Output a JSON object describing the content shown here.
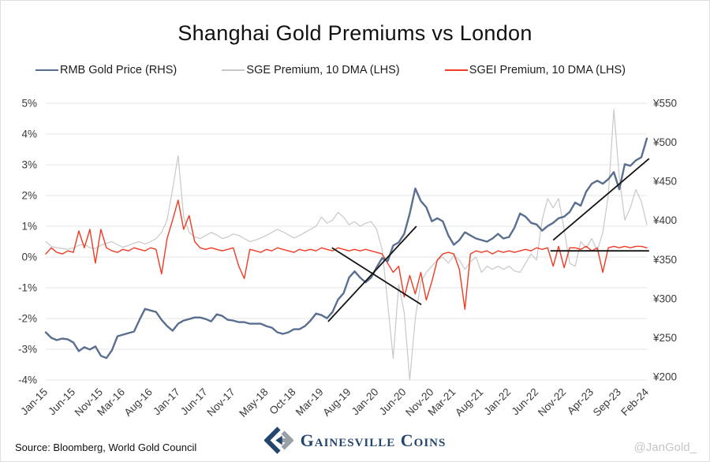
{
  "title": "Shanghai Gold Premiums vs London",
  "footer": {
    "source": "Source: Bloomberg, World Gold Council",
    "logo_text": "Gainesville Coins",
    "watermark": "@JanGold_"
  },
  "chart_data": {
    "type": "line",
    "title": "Shanghai Gold Premiums vs London",
    "x_start": "Jan-2015",
    "x_end": "Feb-2024",
    "x_frequency": "monthly",
    "x_index_count": 110,
    "grid": true,
    "grid_color": "#e4e4e4",
    "legend_position": "top",
    "left_axis": {
      "format": "percent",
      "max": 5,
      "min": -4,
      "ticks": [
        {
          "label": "5%",
          "value": 5
        },
        {
          "label": "4%",
          "value": 4
        },
        {
          "label": "3%",
          "value": 3
        },
        {
          "label": "2%",
          "value": 2
        },
        {
          "label": "1%",
          "value": 1
        },
        {
          "label": "0%",
          "value": 0
        },
        {
          "label": "-1%",
          "value": -1
        },
        {
          "label": "-2%",
          "value": -2
        },
        {
          "label": "-3%",
          "value": -3
        },
        {
          "label": "-4%",
          "value": -4
        }
      ]
    },
    "right_axis": {
      "format": "cny-per-gram",
      "max": 550,
      "min": 196,
      "ticks": [
        {
          "label": "¥550",
          "value": 550
        },
        {
          "label": "¥500",
          "value": 500
        },
        {
          "label": "¥450",
          "value": 450
        },
        {
          "label": "¥400",
          "value": 400
        },
        {
          "label": "¥350",
          "value": 350
        },
        {
          "label": "¥300",
          "value": 300
        },
        {
          "label": "¥250",
          "value": 250
        },
        {
          "label": "¥200",
          "value": 200
        }
      ]
    },
    "x_axis": {
      "ticks": [
        {
          "label": "Jan-15",
          "m": 0
        },
        {
          "label": "Jun-15",
          "m": 5
        },
        {
          "label": "Nov-15",
          "m": 10
        },
        {
          "label": "Mar-16",
          "m": 14
        },
        {
          "label": "Aug-16",
          "m": 19
        },
        {
          "label": "Jan-17",
          "m": 24
        },
        {
          "label": "Jun-17",
          "m": 29
        },
        {
          "label": "Nov-17",
          "m": 34
        },
        {
          "label": "May-18",
          "m": 40
        },
        {
          "label": "Oct-18",
          "m": 45
        },
        {
          "label": "Mar-19",
          "m": 50
        },
        {
          "label": "Aug-19",
          "m": 55
        },
        {
          "label": "Jan-20",
          "m": 60
        },
        {
          "label": "Jun-20",
          "m": 65
        },
        {
          "label": "Nov-20",
          "m": 70
        },
        {
          "label": "Mar-21",
          "m": 74
        },
        {
          "label": "Aug-21",
          "m": 79
        },
        {
          "label": "Jan-22",
          "m": 84
        },
        {
          "label": "Jun-22",
          "m": 89
        },
        {
          "label": "Nov-22",
          "m": 94
        },
        {
          "label": "Apr-23",
          "m": 99
        },
        {
          "label": "Sep-23",
          "m": 104
        },
        {
          "label": "Feb-24",
          "m": 109
        }
      ]
    },
    "series": [
      {
        "key": "rmb-gold-price",
        "name": "RMB Gold Price (RHS)",
        "axis": "right",
        "unit": "CNY/gram",
        "color": "#5a6e8f",
        "width": 2.4,
        "values": [
          257,
          250,
          247,
          249,
          248,
          244,
          233,
          238,
          235,
          239,
          227,
          224,
          234,
          252,
          254,
          256,
          258,
          273,
          287,
          285,
          283,
          273,
          265,
          259,
          268,
          272,
          274,
          276,
          276,
          274,
          271,
          280,
          278,
          273,
          272,
          270,
          270,
          268,
          268,
          268,
          265,
          263,
          257,
          255,
          257,
          261,
          261,
          265,
          272,
          281,
          279,
          275,
          283,
          299,
          307,
          327,
          335,
          327,
          321,
          327,
          340,
          352,
          348,
          368,
          372,
          383,
          409,
          441,
          425,
          417,
          399,
          403,
          399,
          381,
          369,
          375,
          385,
          381,
          377,
          375,
          373,
          377,
          383,
          377,
          379,
          391,
          409,
          405,
          397,
          395,
          387,
          393,
          397,
          403,
          405,
          411,
          423,
          419,
          437,
          447,
          451,
          447,
          453,
          462,
          440,
          472,
          470,
          477,
          481,
          505
        ]
      },
      {
        "key": "sge-premium",
        "name": "SGE Premium, 10 DMA (LHS)",
        "axis": "left",
        "unit": "%",
        "color": "#c8c8c8",
        "width": 1.2,
        "values": [
          0.5,
          0.35,
          0.3,
          0.28,
          0.25,
          0.3,
          0.38,
          0.42,
          0.3,
          0.28,
          0.38,
          0.45,
          0.5,
          0.4,
          0.32,
          0.38,
          0.45,
          0.5,
          0.42,
          0.5,
          0.6,
          0.8,
          1.2,
          2.2,
          3.3,
          1.3,
          0.8,
          0.65,
          0.6,
          0.7,
          0.8,
          0.72,
          0.6,
          0.65,
          0.75,
          0.7,
          0.6,
          0.5,
          0.55,
          0.62,
          0.7,
          0.8,
          0.9,
          0.82,
          0.72,
          0.62,
          0.7,
          0.8,
          0.9,
          1.0,
          1.3,
          1.1,
          1.2,
          1.45,
          1.3,
          1.05,
          1.15,
          1.0,
          1.1,
          1.15,
          0.9,
          0.25,
          -1.5,
          -3.3,
          -0.9,
          -1.8,
          -4.0,
          -2.0,
          -0.8,
          -0.5,
          -0.3,
          -0.1,
          0.0,
          -0.2,
          0.05,
          -0.1,
          -0.4,
          -0.15,
          0.0,
          -0.5,
          -0.3,
          -0.4,
          -0.3,
          -0.4,
          -0.3,
          -0.45,
          -0.5,
          -0.2,
          0.1,
          -0.1,
          1.2,
          1.9,
          1.6,
          1.9,
          0.9,
          -0.2,
          -0.3,
          0.5,
          0.3,
          0.6,
          0.2,
          0.8,
          2.0,
          4.8,
          2.6,
          1.2,
          1.6,
          2.2,
          1.8,
          1.05
        ]
      },
      {
        "key": "sgei-premium",
        "name": "SGEI Premium, 10 DMA (LHS)",
        "axis": "left",
        "unit": "%",
        "color": "#ef3b24",
        "width": 1.4,
        "values": [
          0.1,
          0.3,
          0.15,
          0.1,
          0.2,
          0.15,
          0.85,
          0.3,
          0.9,
          -0.2,
          0.9,
          0.3,
          0.2,
          0.15,
          0.25,
          0.2,
          0.3,
          0.25,
          0.2,
          0.3,
          0.25,
          -0.55,
          0.6,
          1.2,
          1.85,
          0.9,
          1.35,
          0.5,
          0.3,
          0.25,
          0.3,
          0.25,
          0.2,
          0.25,
          0.3,
          -0.3,
          -0.7,
          0.25,
          0.2,
          0.15,
          0.25,
          0.2,
          0.3,
          0.25,
          0.2,
          0.15,
          0.25,
          0.2,
          0.25,
          0.2,
          0.3,
          0.25,
          0.2,
          0.3,
          0.25,
          0.2,
          0.25,
          0.2,
          0.25,
          0.2,
          0.15,
          0.1,
          -0.2,
          -0.5,
          -0.3,
          -1.3,
          -0.6,
          -1.2,
          -0.5,
          -1.4,
          -0.8,
          -0.1,
          0.1,
          0.15,
          0.1,
          -0.4,
          -1.7,
          0.1,
          0.2,
          0.15,
          0.2,
          0.1,
          0.2,
          0.15,
          0.2,
          0.15,
          0.2,
          0.25,
          0.2,
          0.3,
          0.25,
          0.3,
          -0.3,
          0.35,
          -0.35,
          0.3,
          0.3,
          0.25,
          0.35,
          0.2,
          0.3,
          -0.5,
          0.3,
          0.35,
          0.3,
          0.35,
          0.3,
          0.35,
          0.35,
          0.3
        ]
      }
    ],
    "annotations": {
      "color": "#141414",
      "lines": [
        {
          "name": "uptrend-2019-2020",
          "x1": 51.2,
          "y1": -2.1,
          "x2": 67.2,
          "y2": 1.0
        },
        {
          "name": "downtrend-2019-2020",
          "x1": 51.9,
          "y1": 0.3,
          "x2": 68.1,
          "y2": -1.55
        },
        {
          "name": "uptrend-2022-2024",
          "x1": 92.0,
          "y1": 0.55,
          "x2": 109.4,
          "y2": 3.2
        },
        {
          "name": "flat-line-2022-2024",
          "x1": 91.5,
          "y1": 0.2,
          "x2": 109.4,
          "y2": 0.2
        }
      ]
    }
  }
}
